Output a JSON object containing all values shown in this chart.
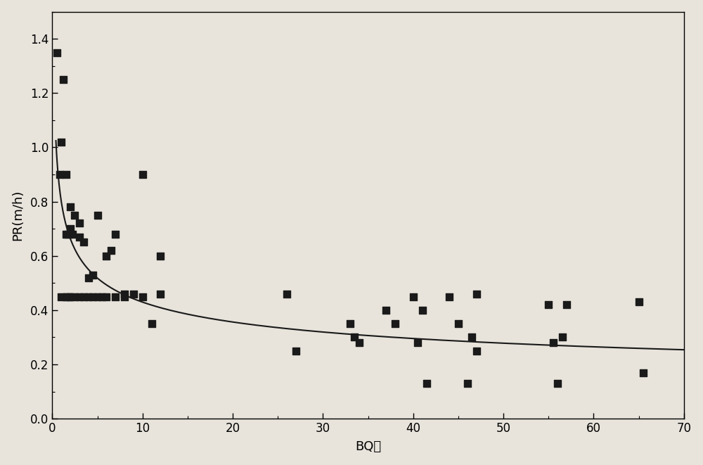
{
  "scatter_x": [
    0.5,
    0.8,
    1.0,
    1.0,
    1.2,
    1.5,
    1.5,
    1.5,
    1.8,
    1.8,
    2.0,
    2.0,
    2.0,
    2.2,
    2.5,
    2.5,
    3.0,
    3.0,
    3.0,
    3.5,
    3.5,
    4.0,
    4.0,
    4.5,
    4.5,
    5.0,
    5.0,
    5.5,
    6.0,
    6.0,
    6.5,
    7.0,
    7.0,
    8.0,
    8.0,
    9.0,
    10.0,
    10.0,
    11.0,
    12.0,
    12.0,
    26.0,
    27.0,
    33.0,
    33.5,
    34.0,
    37.0,
    38.0,
    40.0,
    40.5,
    41.0,
    41.5,
    44.0,
    45.0,
    46.0,
    46.5,
    47.0,
    47.0,
    55.0,
    55.5,
    56.0,
    56.5,
    57.0,
    65.0,
    65.5
  ],
  "scatter_y": [
    1.35,
    0.9,
    1.02,
    0.45,
    1.25,
    0.9,
    0.68,
    0.45,
    0.68,
    0.45,
    0.78,
    0.7,
    0.45,
    0.68,
    0.75,
    0.45,
    0.72,
    0.67,
    0.45,
    0.65,
    0.45,
    0.52,
    0.45,
    0.53,
    0.45,
    0.75,
    0.45,
    0.45,
    0.6,
    0.45,
    0.62,
    0.45,
    0.68,
    0.46,
    0.45,
    0.46,
    0.45,
    0.9,
    0.35,
    0.6,
    0.46,
    0.46,
    0.25,
    0.35,
    0.3,
    0.28,
    0.4,
    0.35,
    0.45,
    0.28,
    0.4,
    0.13,
    0.45,
    0.35,
    0.13,
    0.3,
    0.25,
    0.46,
    0.42,
    0.28,
    0.13,
    0.3,
    0.42,
    0.43,
    0.17
  ],
  "curve_a": 0.8,
  "curve_b": -0.27,
  "curve_xstart": 0.4,
  "curve_xend": 70,
  "xlim": [
    0,
    70
  ],
  "ylim": [
    0.0,
    1.5
  ],
  "xticks": [
    0,
    10,
    20,
    30,
    40,
    50,
    60,
    70
  ],
  "yticks": [
    0.0,
    0.2,
    0.4,
    0.6,
    0.8,
    1.0,
    1.2,
    1.4
  ],
  "xlabel": "BQ机",
  "ylabel": "PR(m/h)",
  "marker_color": "#1a1a1a",
  "marker_size": 45,
  "line_color": "#1a1a1a",
  "line_width": 1.5,
  "bg_color": "#e8e4dc",
  "spine_color": "#000000",
  "figsize": [
    10.0,
    6.61
  ],
  "dpi": 100
}
